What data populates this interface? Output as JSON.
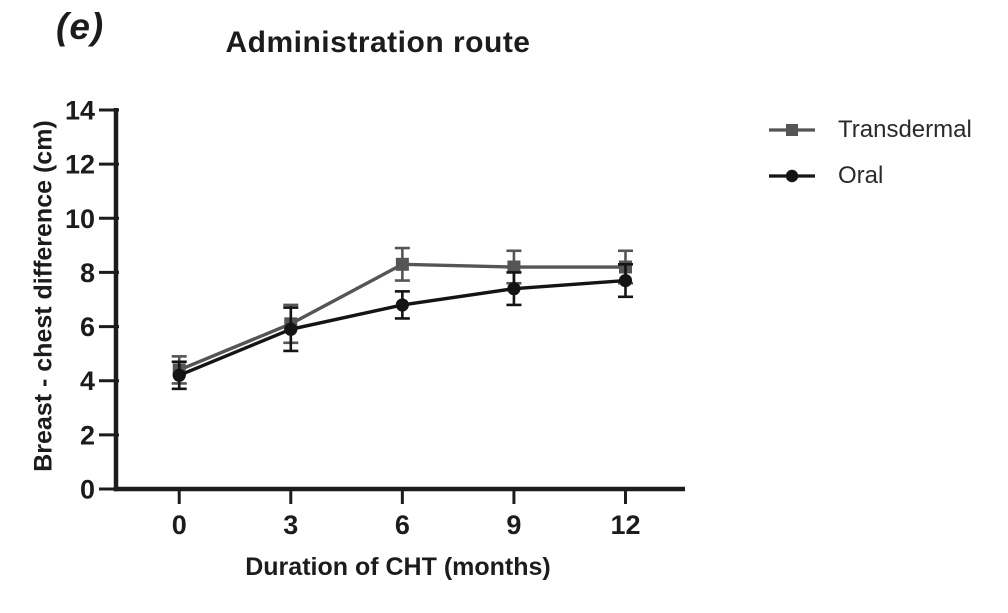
{
  "figure_label": "(e)",
  "chart_data": {
    "type": "line",
    "title": "Administration route",
    "xlabel": "Duration of CHT (months)",
    "ylabel": "Breast - chest difference (cm)",
    "x": [
      0,
      3,
      6,
      9,
      12
    ],
    "xticks": [
      "0",
      "3",
      "6",
      "9",
      "12"
    ],
    "yticks": [
      "0",
      "2",
      "4",
      "6",
      "8",
      "10",
      "12",
      "14"
    ],
    "xlim": [
      -1.7,
      13.6
    ],
    "ylim": [
      0,
      14
    ],
    "grid": false,
    "legend_position": "right",
    "error_bars": true,
    "series": [
      {
        "name": "Transdermal",
        "marker": "square",
        "color": "#555557",
        "values": [
          4.4,
          6.1,
          8.3,
          8.2,
          8.2
        ],
        "errors": [
          0.5,
          0.7,
          0.6,
          0.6,
          0.6
        ]
      },
      {
        "name": "Oral",
        "marker": "circle",
        "color": "#141414",
        "values": [
          4.2,
          5.9,
          6.8,
          7.4,
          7.7
        ],
        "errors": [
          0.5,
          0.8,
          0.5,
          0.6,
          0.6
        ]
      }
    ],
    "axis_color": "#1c1c1c"
  }
}
